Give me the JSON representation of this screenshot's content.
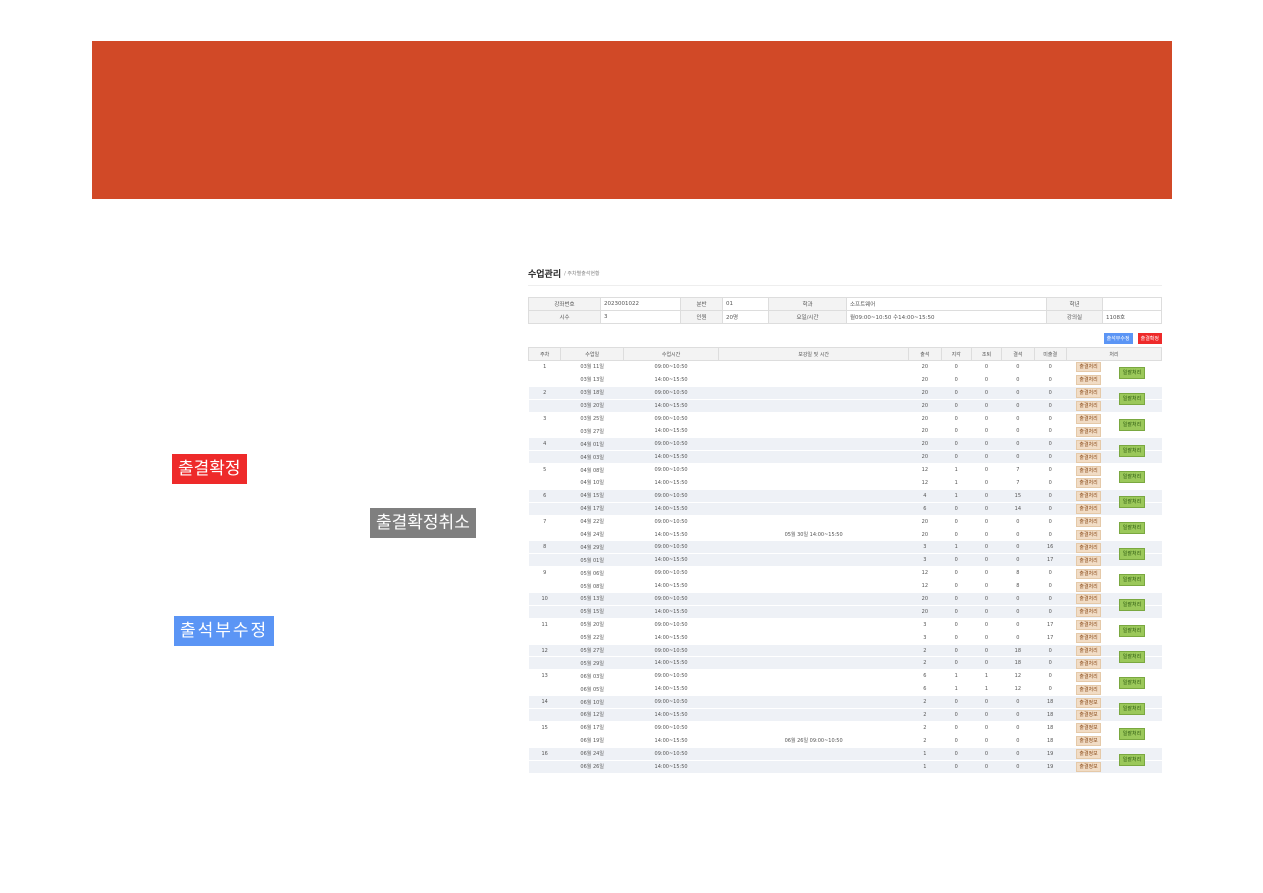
{
  "slide": {
    "labels": {
      "confirm": "출결확정",
      "cancel": "출결확정취소",
      "edit": "출석부수정"
    },
    "colors": {
      "banner": "#d14927",
      "confirm": "#ee2a2a",
      "cancel": "#7f7f7f",
      "edit": "#5b95f5"
    }
  },
  "page": {
    "title": "수업관리",
    "breadcrumb": "/ 주차별출석현황",
    "info": {
      "course_no_label": "강좌번호",
      "course_no": "2023001022",
      "class_label": "분반",
      "class": "01",
      "dept_label": "학과",
      "dept": "소프트웨어",
      "year_label": "학년",
      "year": "",
      "hours_label": "시수",
      "hours": "3",
      "count_label": "인원",
      "count": "20명",
      "time_label": "요일/시간",
      "time": "월09:00~10:50 수14:00~15:50",
      "room_label": "강의실",
      "room": "1108호"
    },
    "buttons": {
      "edit": "출석부수정",
      "confirm": "출결확정"
    },
    "columns": [
      "주차",
      "수업일",
      "수업시간",
      "보강일 및 시간",
      "출석",
      "지각",
      "조퇴",
      "결석",
      "미출결",
      "처리"
    ],
    "bulk_label": "일괄처리",
    "weeks": [
      {
        "w": "1",
        "rows": [
          [
            "03월 11일",
            "09:00~10:50",
            "",
            "20",
            "0",
            "0",
            "0",
            "0",
            "출결처리"
          ],
          [
            "03월 13일",
            "14:00~15:50",
            "",
            "20",
            "0",
            "0",
            "0",
            "0",
            "출결처리"
          ]
        ]
      },
      {
        "w": "2",
        "rows": [
          [
            "03월 18일",
            "09:00~10:50",
            "",
            "20",
            "0",
            "0",
            "0",
            "0",
            "출결처리"
          ],
          [
            "03월 20일",
            "14:00~15:50",
            "",
            "20",
            "0",
            "0",
            "0",
            "0",
            "출결처리"
          ]
        ]
      },
      {
        "w": "3",
        "rows": [
          [
            "03월 25일",
            "09:00~10:50",
            "",
            "20",
            "0",
            "0",
            "0",
            "0",
            "출결처리"
          ],
          [
            "03월 27일",
            "14:00~15:50",
            "",
            "20",
            "0",
            "0",
            "0",
            "0",
            "출결처리"
          ]
        ]
      },
      {
        "w": "4",
        "rows": [
          [
            "04월 01일",
            "09:00~10:50",
            "",
            "20",
            "0",
            "0",
            "0",
            "0",
            "출결처리"
          ],
          [
            "04월 03일",
            "14:00~15:50",
            "",
            "20",
            "0",
            "0",
            "0",
            "0",
            "출결처리"
          ]
        ]
      },
      {
        "w": "5",
        "rows": [
          [
            "04월 08일",
            "09:00~10:50",
            "",
            "12",
            "1",
            "0",
            "7",
            "0",
            "출결처리"
          ],
          [
            "04월 10일",
            "14:00~15:50",
            "",
            "12",
            "1",
            "0",
            "7",
            "0",
            "출결처리"
          ]
        ]
      },
      {
        "w": "6",
        "rows": [
          [
            "04월 15일",
            "09:00~10:50",
            "",
            "4",
            "1",
            "0",
            "15",
            "0",
            "출결처리"
          ],
          [
            "04월 17일",
            "14:00~15:50",
            "",
            "6",
            "0",
            "0",
            "14",
            "0",
            "출결처리"
          ]
        ]
      },
      {
        "w": "7",
        "rows": [
          [
            "04월 22일",
            "09:00~10:50",
            "",
            "20",
            "0",
            "0",
            "0",
            "0",
            "출결처리"
          ],
          [
            "04월 24일",
            "14:00~15:50",
            "05월 30일 14:00~15:50",
            "20",
            "0",
            "0",
            "0",
            "0",
            "출결처리"
          ]
        ]
      },
      {
        "w": "8",
        "rows": [
          [
            "04월 29일",
            "09:00~10:50",
            "",
            "3",
            "1",
            "0",
            "0",
            "16",
            "출결처리"
          ],
          [
            "05월 01일",
            "14:00~15:50",
            "",
            "3",
            "0",
            "0",
            "0",
            "17",
            "출결처리"
          ]
        ]
      },
      {
        "w": "9",
        "rows": [
          [
            "05월 06일",
            "09:00~10:50",
            "",
            "12",
            "0",
            "0",
            "8",
            "0",
            "출결처리"
          ],
          [
            "05월 08일",
            "14:00~15:50",
            "",
            "12",
            "0",
            "0",
            "8",
            "0",
            "출결처리"
          ]
        ]
      },
      {
        "w": "10",
        "rows": [
          [
            "05월 13일",
            "09:00~10:50",
            "",
            "20",
            "0",
            "0",
            "0",
            "0",
            "출결처리"
          ],
          [
            "05월 15일",
            "14:00~15:50",
            "",
            "20",
            "0",
            "0",
            "0",
            "0",
            "출결처리"
          ]
        ]
      },
      {
        "w": "11",
        "rows": [
          [
            "05월 20일",
            "09:00~10:50",
            "",
            "3",
            "0",
            "0",
            "0",
            "17",
            "출결처리"
          ],
          [
            "05월 22일",
            "14:00~15:50",
            "",
            "3",
            "0",
            "0",
            "0",
            "17",
            "출결처리"
          ]
        ]
      },
      {
        "w": "12",
        "rows": [
          [
            "05월 27일",
            "09:00~10:50",
            "",
            "2",
            "0",
            "0",
            "18",
            "0",
            "출결처리"
          ],
          [
            "05월 29일",
            "14:00~15:50",
            "",
            "2",
            "0",
            "0",
            "18",
            "0",
            "출결처리"
          ]
        ]
      },
      {
        "w": "13",
        "rows": [
          [
            "06월 03일",
            "09:00~10:50",
            "",
            "6",
            "1",
            "1",
            "12",
            "0",
            "출결처리"
          ],
          [
            "06월 05일",
            "14:00~15:50",
            "",
            "6",
            "1",
            "1",
            "12",
            "0",
            "출결처리"
          ]
        ]
      },
      {
        "w": "14",
        "rows": [
          [
            "06월 10일",
            "09:00~10:50",
            "",
            "2",
            "0",
            "0",
            "0",
            "18",
            "출결정보"
          ],
          [
            "06월 12일",
            "14:00~15:50",
            "",
            "2",
            "0",
            "0",
            "0",
            "18",
            "출결정보"
          ]
        ]
      },
      {
        "w": "15",
        "rows": [
          [
            "06월 17일",
            "09:00~10:50",
            "",
            "2",
            "0",
            "0",
            "0",
            "18",
            "출결정보"
          ],
          [
            "06월 19일",
            "14:00~15:50",
            "06월 26일 09:00~10:50",
            "2",
            "0",
            "0",
            "0",
            "18",
            "출결정보"
          ]
        ]
      },
      {
        "w": "16",
        "rows": [
          [
            "06월 24일",
            "09:00~10:50",
            "",
            "1",
            "0",
            "0",
            "0",
            "19",
            "출결정보"
          ],
          [
            "06월 26일",
            "14:00~15:50",
            "",
            "1",
            "0",
            "0",
            "0",
            "19",
            "출결정보"
          ]
        ]
      }
    ]
  }
}
